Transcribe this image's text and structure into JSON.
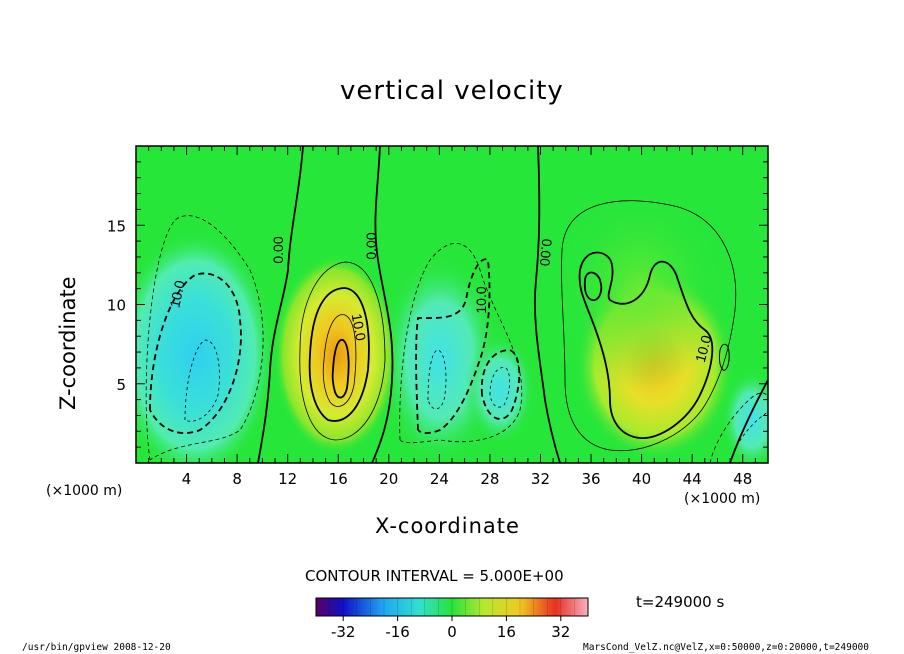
{
  "chart_data": {
    "type": "heatmap",
    "title": "vertical velocity",
    "xlabel": "X-coordinate",
    "ylabel": "Z-coordinate",
    "x_unit_left": "(×1000 m)",
    "x_unit_right": "(×1000 m)",
    "xlim": [
      0,
      50
    ],
    "ylim": [
      0,
      20
    ],
    "x_ticks": [
      "4",
      "8",
      "12",
      "16",
      "20",
      "24",
      "28",
      "32",
      "36",
      "40",
      "44",
      "48"
    ],
    "y_ticks": [
      "5",
      "10",
      "15"
    ],
    "contour_interval_label": "CONTOUR INTERVAL = 5.000E+00",
    "time_label": "t=249000 s",
    "colorbar": {
      "range": [
        -40,
        40
      ],
      "tick_labels": [
        "-32",
        "-16",
        "0",
        "16",
        "32"
      ]
    },
    "contour_labels": [
      "10.0",
      "0.00",
      "0.00",
      "10.0",
      "10.0",
      "0.00",
      "10.0"
    ],
    "cells": [
      {
        "x": 5,
        "z": 6,
        "value": -15
      },
      {
        "x": 16,
        "z": 6,
        "value": 25
      },
      {
        "x": 25,
        "z": 6,
        "value": -12
      },
      {
        "x": 30,
        "z": 5,
        "value": -8
      },
      {
        "x": 41,
        "z": 5.5,
        "value": 16
      },
      {
        "x": 48,
        "z": 3,
        "value": -5
      }
    ],
    "colors": {
      "background_field": "#27e63a",
      "negative": "#27d8e6",
      "positive": "#f0a020"
    }
  },
  "footer": {
    "left": "/usr/bin/gpview  2008-12-20",
    "right": "MarsCond_VelZ.nc@VelZ,x=0:50000,z=0:20000,t=249000"
  }
}
